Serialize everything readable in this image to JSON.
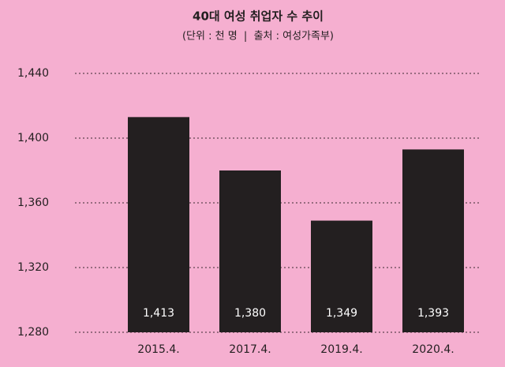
{
  "chart_data": {
    "type": "bar",
    "title": "40대 여성 취업자 수 추이",
    "subtitle": "(단위 : 천 명  |  출처 : 여성가족부)",
    "categories": [
      "2015.4.",
      "2017.4.",
      "2019.4.",
      "2020.4."
    ],
    "values": [
      1413,
      1380,
      1349,
      1393
    ],
    "value_labels": [
      "1,413",
      "1,380",
      "1,349",
      "1,393"
    ],
    "color": "#231f20",
    "ylim": [
      1280,
      1440
    ],
    "yticks": [
      {
        "value": 1280,
        "label": "1,280"
      },
      {
        "value": 1320,
        "label": "1,320"
      },
      {
        "value": 1360,
        "label": "1,360"
      },
      {
        "value": 1400,
        "label": "1,400"
      },
      {
        "value": 1440,
        "label": "1,440"
      }
    ],
    "grid": true
  }
}
